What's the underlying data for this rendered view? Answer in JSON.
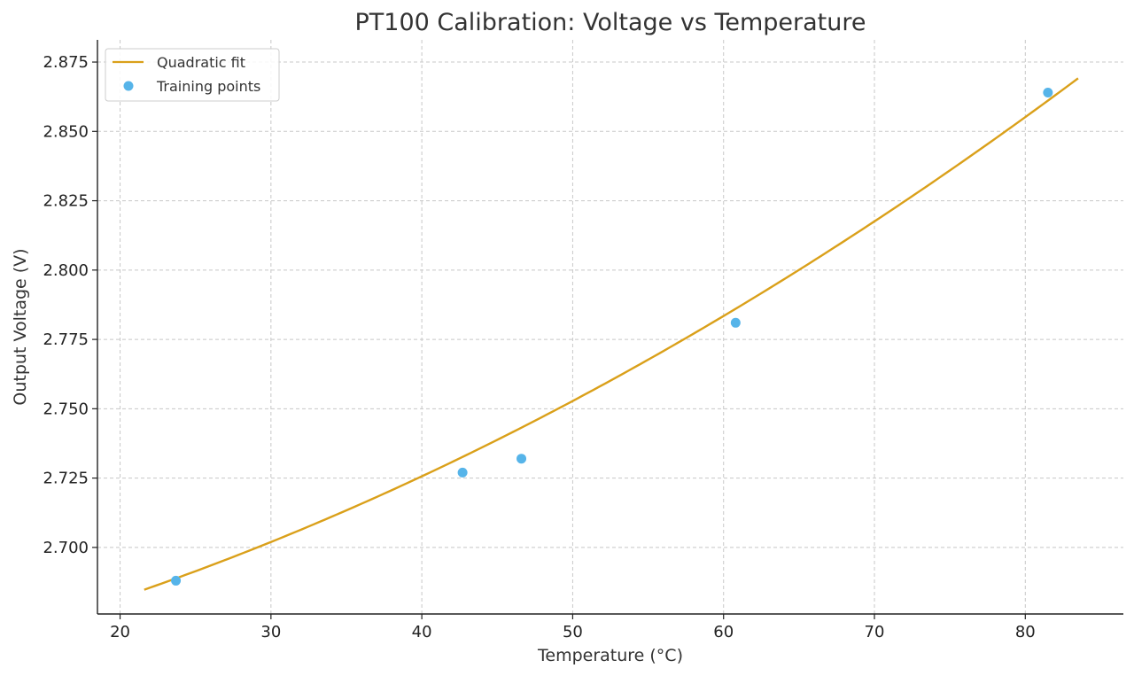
{
  "chart_data": {
    "type": "scatter",
    "title": "PT100 Calibration: Voltage vs Temperature",
    "xlabel": "Temperature (°C)",
    "ylabel": "Output Voltage (V)",
    "xlim": [
      18.5,
      86.5
    ],
    "ylim": [
      2.676,
      2.883
    ],
    "xticks": [
      20,
      30,
      40,
      50,
      60,
      70,
      80
    ],
    "yticks": [
      2.7,
      2.725,
      2.75,
      2.775,
      2.8,
      2.825,
      2.85,
      2.875
    ],
    "ytick_labels": [
      "2.700",
      "2.725",
      "2.750",
      "2.775",
      "2.800",
      "2.825",
      "2.850",
      "2.875"
    ],
    "grid": true,
    "legend_position": "top-left",
    "series": [
      {
        "name": "Quadratic fit",
        "kind": "line",
        "color": "#DAA01A",
        "x_range": [
          21.6,
          83.5
        ],
        "coefficients": {
          "a": 1.74e-05,
          "b": 0.00115,
          "c": 2.6518
        }
      },
      {
        "name": "Training points",
        "kind": "scatter",
        "color": "#56B4E9",
        "x": [
          23.7,
          42.7,
          46.6,
          60.8,
          81.5
        ],
        "y": [
          2.688,
          2.727,
          2.732,
          2.781,
          2.864
        ]
      }
    ]
  }
}
